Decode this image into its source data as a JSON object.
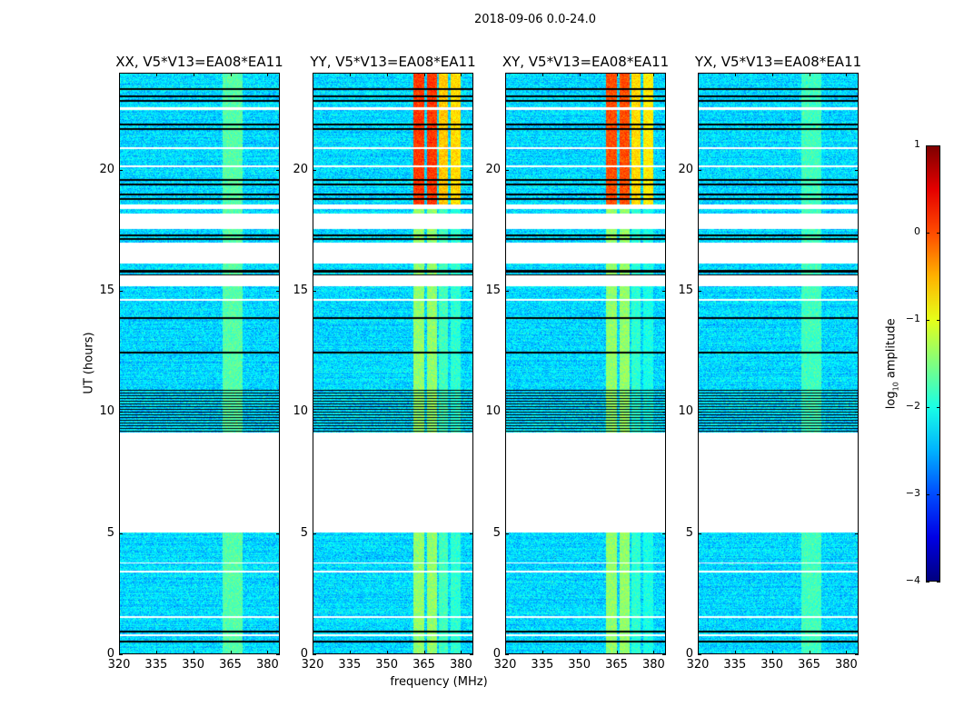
{
  "chart_data": {
    "type": "heatmap",
    "title": "2018-09-06 0.0-24.0",
    "xlabel": "frequency (MHz)",
    "ylabel": "UT (hours)",
    "xlim": [
      320,
      385
    ],
    "ylim": [
      0,
      24
    ],
    "xticks": [
      320,
      335,
      350,
      365,
      380
    ],
    "yticks": [
      0,
      5,
      10,
      15,
      20
    ],
    "colormap": "jet",
    "colorbar": {
      "label_main": "log",
      "label_sub": "10",
      "label_rest": " amplitude",
      "range": [
        -4,
        1
      ],
      "ticks": [
        1,
        0,
        -1,
        -2,
        -3,
        -4
      ],
      "tick_labels": [
        "1",
        "0",
        "−1",
        "−2",
        "−3",
        "−4"
      ]
    },
    "background_log_amplitude": -2.3,
    "no_data_ut_ranges": [
      [
        5.0,
        9.15
      ],
      [
        16.12,
        17.0
      ],
      [
        17.55,
        18.19
      ],
      [
        18.41,
        18.6
      ],
      [
        15.2,
        15.64
      ],
      [
        22.5,
        22.62
      ],
      [
        20.88,
        20.96
      ],
      [
        20.13,
        20.2
      ],
      [
        14.58,
        14.66
      ],
      [
        3.72,
        3.78
      ],
      [
        3.35,
        3.41
      ],
      [
        1.47,
        1.53
      ],
      [
        0.72,
        0.78
      ]
    ],
    "flagged_ut_lines": [
      23.36,
      23.06,
      22.87,
      21.9,
      21.7,
      19.6,
      19.4,
      19.0,
      18.82,
      17.29,
      17.14,
      15.82,
      15.64,
      13.87,
      12.45,
      5.06,
      0.9,
      0.49
    ],
    "flagged_dense_ut_range": [
      9.15,
      10.9
    ],
    "panels": [
      {
        "title": "XX, V5*V13=EA08*EA11",
        "bright_bands": [
          {
            "freq_range": [
              362,
              370
            ],
            "mean_log_amplitude": -1.7
          }
        ]
      },
      {
        "title": "YY, V5*V13=EA08*EA11",
        "bright_bands": [
          {
            "freq_range": [
              361,
              365.2
            ],
            "mean_log_amplitude_late": 0.1,
            "mean_log_amplitude_early": -1.4
          },
          {
            "freq_range": [
              366.3,
              370.4
            ],
            "mean_log_amplitude_late": 0.1,
            "mean_log_amplitude_early": -1.4
          },
          {
            "freq_range": [
              371.1,
              375.1
            ],
            "mean_log_amplitude_late": -0.6,
            "mean_log_amplitude_early": -1.8
          },
          {
            "freq_range": [
              376.2,
              380.3
            ],
            "mean_log_amplitude_late": -0.7,
            "mean_log_amplitude_early": -1.9
          }
        ]
      },
      {
        "title": "XY, V5*V13=EA08*EA11",
        "bright_bands": [
          {
            "freq_range": [
              361,
              365.2
            ],
            "mean_log_amplitude_late": 0.0,
            "mean_log_amplitude_early": -1.4
          },
          {
            "freq_range": [
              366.3,
              370.4
            ],
            "mean_log_amplitude_late": 0.0,
            "mean_log_amplitude_early": -1.4
          },
          {
            "freq_range": [
              371.1,
              375.1
            ],
            "mean_log_amplitude_late": -0.7,
            "mean_log_amplitude_early": -1.9
          },
          {
            "freq_range": [
              376.2,
              380.3
            ],
            "mean_log_amplitude_late": -0.8,
            "mean_log_amplitude_early": -2.0
          }
        ]
      },
      {
        "title": "YX, V5*V13=EA08*EA11",
        "bright_bands": [
          {
            "freq_range": [
              362,
              370
            ],
            "mean_log_amplitude": -1.8
          }
        ]
      }
    ],
    "bright_band_late_start_ut": 18.4
  }
}
